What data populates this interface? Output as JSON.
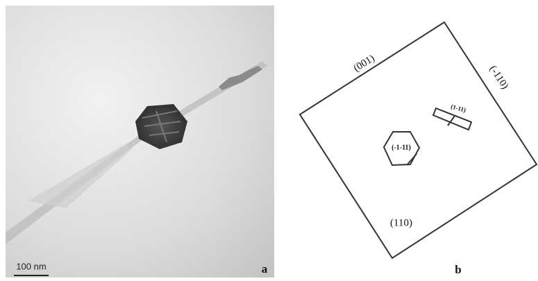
{
  "panel_a": {
    "scale_bar": "100 nm",
    "label": "a"
  },
  "panel_b": {
    "faces": {
      "top": "(001)",
      "right": "(-110)",
      "bottom": "(110)"
    },
    "hexagon": "(-1-11)",
    "plate": "(1-11)",
    "label": "b"
  }
}
